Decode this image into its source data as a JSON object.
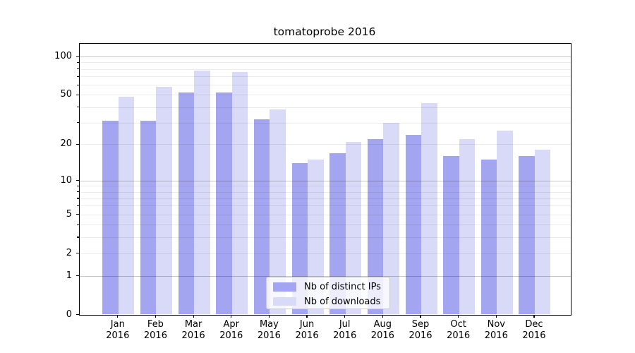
{
  "title": "tomatoprobe 2016",
  "chart_data": {
    "type": "bar",
    "title": "tomatoprobe 2016",
    "x_categories": [
      "Jan 2016",
      "Feb 2016",
      "Mar 2016",
      "Apr 2016",
      "May 2016",
      "Jun 2016",
      "Jul 2016",
      "Aug 2016",
      "Sep 2016",
      "Oct 2016",
      "Nov 2016",
      "Dec 2016"
    ],
    "months": [
      "Jan",
      "Feb",
      "Mar",
      "Apr",
      "May",
      "Jun",
      "Jul",
      "Aug",
      "Sep",
      "Oct",
      "Nov",
      "Dec"
    ],
    "year": "2016",
    "series": [
      {
        "name": "Nb of distinct IPs",
        "color": "#a3a5f0",
        "values": [
          31,
          31,
          52,
          52,
          32,
          14,
          17,
          22,
          24,
          16,
          15,
          16
        ]
      },
      {
        "name": "Nb of downloads",
        "color": "#d8daf7",
        "values": [
          48,
          58,
          78,
          76,
          38,
          15,
          21,
          30,
          43,
          22,
          26,
          18
        ]
      }
    ],
    "xlabel": "",
    "ylabel": "",
    "y_scale": "log1p",
    "ylim": [
      0,
      126
    ],
    "y_ticks": [
      "0",
      "1",
      "2",
      "5",
      "10",
      "20",
      "50",
      "100"
    ],
    "y_tick_values": [
      0,
      1,
      2,
      5,
      10,
      20,
      50,
      100
    ],
    "y_major_gridlines": [
      1,
      10,
      100
    ],
    "y_minor_gridlines": [
      2,
      3,
      4,
      5,
      6,
      7,
      8,
      9,
      20,
      30,
      40,
      50,
      60,
      70,
      80,
      90
    ],
    "grid": true,
    "legend_position": "lower center"
  },
  "colors": {
    "bar_distinct_ips": "#a3a5f0",
    "bar_downloads": "#d8daf7",
    "grid_major": "#c9c9c9",
    "grid_minor": "#ededed",
    "spine": "#000000",
    "text": "#000000",
    "legend_border": "#cccccc",
    "background": "#ffffff"
  }
}
